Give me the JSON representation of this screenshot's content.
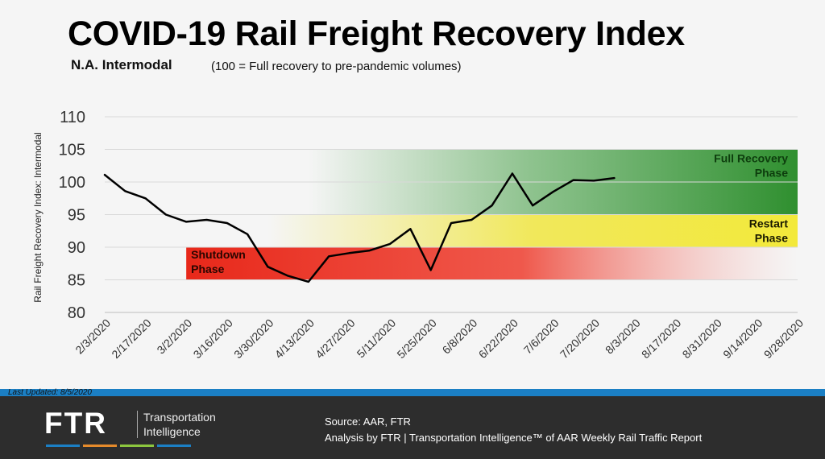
{
  "header": {
    "title": "COVID-19 Rail Freight Recovery Index",
    "subtitle": "N.A. Intermodal",
    "subnote": "(100 = Full recovery to pre-pandemic volumes)"
  },
  "chart_data": {
    "type": "line",
    "ylabel": "Rail Freight Recovery Index: Intermodal",
    "ylim": [
      80,
      110
    ],
    "yticks": [
      80,
      85,
      90,
      95,
      100,
      105,
      110
    ],
    "xticks": [
      "2/3/2020",
      "2/17/2020",
      "3/2/2020",
      "3/16/2020",
      "3/30/2020",
      "4/13/2020",
      "4/27/2020",
      "5/11/2020",
      "5/25/2020",
      "6/8/2020",
      "6/22/2020",
      "7/6/2020",
      "7/20/2020",
      "8/3/2020",
      "8/17/2020",
      "8/31/2020",
      "9/14/2020",
      "9/28/2020"
    ],
    "series": [
      {
        "x": [
          "2/3/2020",
          "2/10/2020",
          "2/17/2020",
          "2/24/2020",
          "3/2/2020",
          "3/9/2020",
          "3/16/2020",
          "3/23/2020",
          "3/30/2020",
          "4/6/2020",
          "4/13/2020",
          "4/20/2020",
          "4/27/2020",
          "5/4/2020",
          "5/11/2020",
          "5/18/2020",
          "5/25/2020",
          "6/1/2020",
          "6/8/2020",
          "6/15/2020",
          "6/22/2020",
          "6/29/2020",
          "7/6/2020",
          "7/13/2020",
          "7/20/2020",
          "7/27/2020"
        ],
        "values": [
          101.1,
          98.6,
          97.5,
          95.0,
          93.9,
          94.2,
          93.7,
          92.0,
          87.0,
          85.6,
          84.7,
          88.6,
          89.1,
          89.5,
          90.5,
          92.8,
          86.5,
          93.7,
          94.2,
          96.4,
          101.3,
          96.4,
          98.5,
          100.3,
          100.2,
          100.6
        ],
        "color": "#000000"
      }
    ],
    "bands": [
      {
        "label": "Full Recovery Phase",
        "line1": "Full Recovery",
        "line2": "Phase",
        "y_from": 95,
        "y_to": 105,
        "x_from": "4/13/2020",
        "x_to": "9/28/2020",
        "color": "#3b9a3b",
        "label_color": "#0d3d0d"
      },
      {
        "label": "Restart Phase",
        "line1": "Restart",
        "line2": "Phase",
        "y_from": 90,
        "y_to": 95,
        "x_from": "3/30/2020",
        "x_to": "9/28/2020",
        "color": "#f0e640",
        "label_color": "#1a1a00"
      },
      {
        "label": "Shutdown Phase",
        "line1": "Shutdown",
        "line2": "Phase",
        "y_from": 85,
        "y_to": 90,
        "x_from": "3/2/2020",
        "x_to": "9/28/2020",
        "color": "#e8281a",
        "label_color": "#2a0500"
      }
    ],
    "grid": true,
    "legend": "none"
  },
  "footer": {
    "last_updated": "Last Updated: 8/5/2020",
    "logo": "FTR",
    "tag_line1": "Transportation",
    "tag_line2": "Intelligence",
    "source_line1": "Source: AAR, FTR",
    "source_line2": "Analysis by FTR | Transportation Intelligence™ of AAR Weekly Rail Traffic Report",
    "underline_colors": [
      "#1b7fc4",
      "#e58a2b",
      "#8cc63e",
      "#1b7fc4"
    ]
  }
}
